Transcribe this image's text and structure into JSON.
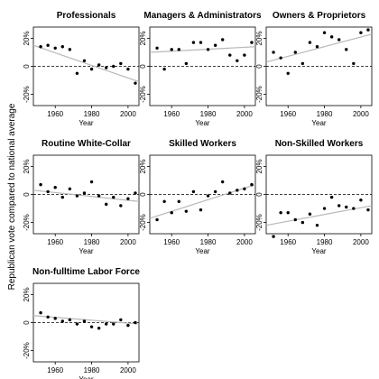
{
  "figure": {
    "ylabel": "Republican vote compared to national average"
  },
  "chart_data": [
    {
      "type": "scatter",
      "title": "Professionals",
      "xlabel": "Year",
      "xlim": [
        1948,
        2006
      ],
      "ylim": [
        -28,
        28
      ],
      "xticks": [
        1960,
        1980,
        2000
      ],
      "yticks": [
        -20,
        0,
        20
      ],
      "ytick_labels": [
        "-20%",
        "0",
        "20%"
      ],
      "reference_line": 0,
      "trend": [
        [
          1948,
          15
        ],
        [
          2006,
          -11
        ]
      ],
      "points": [
        [
          1952,
          14
        ],
        [
          1956,
          15
        ],
        [
          1960,
          13
        ],
        [
          1964,
          14
        ],
        [
          1968,
          12
        ],
        [
          1972,
          -5
        ],
        [
          1976,
          4
        ],
        [
          1980,
          -2
        ],
        [
          1984,
          1
        ],
        [
          1988,
          -1
        ],
        [
          1992,
          0
        ],
        [
          1996,
          2
        ],
        [
          2000,
          -2
        ],
        [
          2004,
          -12
        ]
      ]
    },
    {
      "type": "scatter",
      "title": "Managers & Administrators",
      "xlabel": "Year",
      "xlim": [
        1948,
        2006
      ],
      "ylim": [
        -28,
        28
      ],
      "xticks": [
        1960,
        1980,
        2000
      ],
      "yticks": [
        -20,
        0,
        20
      ],
      "ytick_labels": [
        "-20%",
        "0",
        "20%"
      ],
      "reference_line": 0,
      "trend": [
        [
          1948,
          10
        ],
        [
          2006,
          14
        ]
      ],
      "points": [
        [
          1952,
          13
        ],
        [
          1956,
          -2
        ],
        [
          1960,
          12
        ],
        [
          1964,
          12
        ],
        [
          1968,
          2
        ],
        [
          1972,
          17
        ],
        [
          1976,
          17
        ],
        [
          1980,
          12
        ],
        [
          1984,
          15
        ],
        [
          1988,
          19
        ],
        [
          1992,
          8
        ],
        [
          1996,
          4
        ],
        [
          2000,
          8
        ],
        [
          2004,
          17
        ]
      ]
    },
    {
      "type": "scatter",
      "title": "Owners & Proprietors",
      "xlabel": "Year",
      "xlim": [
        1948,
        2006
      ],
      "ylim": [
        -28,
        28
      ],
      "xticks": [
        1960,
        1980,
        2000
      ],
      "yticks": [
        -20,
        0,
        20
      ],
      "ytick_labels": [
        "-20%",
        "0",
        "20%"
      ],
      "reference_line": 0,
      "trend": [
        [
          1948,
          3
        ],
        [
          2006,
          23
        ]
      ],
      "points": [
        [
          1952,
          10
        ],
        [
          1956,
          6
        ],
        [
          1960,
          -5
        ],
        [
          1964,
          10
        ],
        [
          1968,
          2
        ],
        [
          1972,
          17
        ],
        [
          1976,
          14
        ],
        [
          1980,
          24
        ],
        [
          1984,
          21
        ],
        [
          1988,
          19
        ],
        [
          1992,
          12
        ],
        [
          1996,
          2
        ],
        [
          2000,
          24
        ],
        [
          2004,
          26
        ]
      ]
    },
    {
      "type": "scatter",
      "title": "Routine White-Collar",
      "xlabel": "Year",
      "xlim": [
        1948,
        2006
      ],
      "ylim": [
        -28,
        28
      ],
      "xticks": [
        1960,
        1980,
        2000
      ],
      "yticks": [
        -20,
        0,
        20
      ],
      "ytick_labels": [
        "-20%",
        "0",
        "20%"
      ],
      "reference_line": 0,
      "trend": [
        [
          1948,
          3
        ],
        [
          2006,
          -5
        ]
      ],
      "points": [
        [
          1952,
          7
        ],
        [
          1956,
          2
        ],
        [
          1960,
          5
        ],
        [
          1964,
          -2
        ],
        [
          1968,
          4
        ],
        [
          1972,
          -1
        ],
        [
          1976,
          1
        ],
        [
          1980,
          9
        ],
        [
          1984,
          -1
        ],
        [
          1988,
          -7
        ],
        [
          1992,
          -2
        ],
        [
          1996,
          -8
        ],
        [
          2000,
          -3
        ],
        [
          2004,
          1
        ]
      ]
    },
    {
      "type": "scatter",
      "title": "Skilled Workers",
      "xlabel": "Year",
      "xlim": [
        1948,
        2006
      ],
      "ylim": [
        -28,
        28
      ],
      "xticks": [
        1960,
        1980,
        2000
      ],
      "yticks": [
        -20,
        0,
        20
      ],
      "ytick_labels": [
        "-20%",
        "0",
        "20%"
      ],
      "reference_line": 0,
      "trend": [
        [
          1948,
          -17
        ],
        [
          2006,
          7
        ]
      ],
      "points": [
        [
          1952,
          -18
        ],
        [
          1956,
          -5
        ],
        [
          1960,
          -13
        ],
        [
          1964,
          -5
        ],
        [
          1968,
          -12
        ],
        [
          1972,
          2
        ],
        [
          1976,
          -11
        ],
        [
          1980,
          -1
        ],
        [
          1984,
          2
        ],
        [
          1988,
          9
        ],
        [
          1992,
          1
        ],
        [
          1996,
          3
        ],
        [
          2000,
          4
        ],
        [
          2004,
          7
        ]
      ]
    },
    {
      "type": "scatter",
      "title": "Non-Skilled Workers",
      "xlabel": "Year",
      "xlim": [
        1948,
        2006
      ],
      "ylim": [
        -28,
        28
      ],
      "xticks": [
        1960,
        1980,
        2000
      ],
      "yticks": [
        -20,
        0,
        20
      ],
      "ytick_labels": [
        "-20%",
        "0",
        "20%"
      ],
      "reference_line": 0,
      "trend": [
        [
          1948,
          -22
        ],
        [
          2006,
          -8
        ]
      ],
      "points": [
        [
          1952,
          -30
        ],
        [
          1956,
          -13
        ],
        [
          1960,
          -13
        ],
        [
          1964,
          -18
        ],
        [
          1968,
          -20
        ],
        [
          1972,
          -14
        ],
        [
          1976,
          -22
        ],
        [
          1980,
          -10
        ],
        [
          1984,
          -2
        ],
        [
          1988,
          -8
        ],
        [
          1992,
          -9
        ],
        [
          1996,
          -10
        ],
        [
          2000,
          -4
        ],
        [
          2004,
          -11
        ]
      ]
    },
    {
      "type": "scatter",
      "title": "Non-fulltime Labor Force",
      "xlabel": "Year",
      "xlim": [
        1948,
        2006
      ],
      "ylim": [
        -28,
        28
      ],
      "xticks": [
        1960,
        1980,
        2000
      ],
      "yticks": [
        -20,
        0,
        20
      ],
      "ytick_labels": [
        "-20%",
        "0",
        "20%"
      ],
      "reference_line": 0,
      "trend": [
        [
          1948,
          5
        ],
        [
          2006,
          -1
        ]
      ],
      "points": [
        [
          1952,
          7
        ],
        [
          1956,
          4
        ],
        [
          1960,
          3
        ],
        [
          1964,
          1
        ],
        [
          1968,
          2
        ],
        [
          1972,
          -1
        ],
        [
          1976,
          1
        ],
        [
          1980,
          -3
        ],
        [
          1984,
          -4
        ],
        [
          1988,
          -1
        ],
        [
          1992,
          -1
        ],
        [
          1996,
          2
        ],
        [
          2000,
          -2
        ],
        [
          2004,
          0
        ]
      ]
    }
  ]
}
